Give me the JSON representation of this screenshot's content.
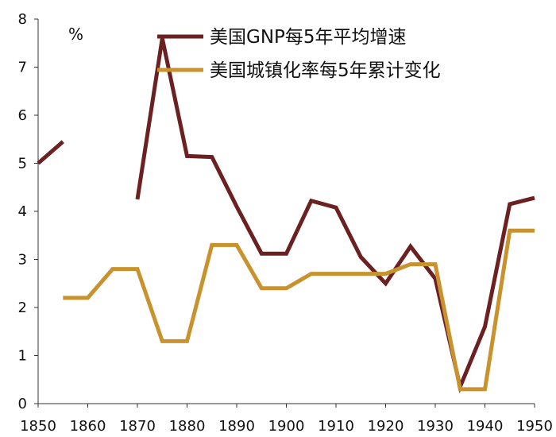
{
  "chart_data": {
    "type": "line",
    "unit_label": "%",
    "xlim": [
      1850,
      1950
    ],
    "ylim": [
      0,
      8
    ],
    "x_ticks": [
      1850,
      1860,
      1870,
      1880,
      1890,
      1900,
      1910,
      1920,
      1930,
      1940,
      1950
    ],
    "y_ticks": [
      0,
      1,
      2,
      3,
      4,
      5,
      6,
      7,
      8
    ],
    "legend_position": "top",
    "grid": false,
    "series": [
      {
        "name": "美国GNP每5年平均增速",
        "color": "#6b2121",
        "points": [
          [
            1850,
            5.0
          ],
          [
            1855,
            5.45
          ],
          [
            1860,
            null
          ],
          [
            1865,
            null
          ],
          [
            1870,
            4.25
          ],
          [
            1875,
            7.6
          ],
          [
            1880,
            5.15
          ],
          [
            1885,
            5.13
          ],
          [
            1890,
            4.1
          ],
          [
            1895,
            3.12
          ],
          [
            1900,
            3.12
          ],
          [
            1905,
            4.22
          ],
          [
            1910,
            4.08
          ],
          [
            1915,
            3.05
          ],
          [
            1920,
            2.5
          ],
          [
            1925,
            3.27
          ],
          [
            1930,
            2.6
          ],
          [
            1935,
            0.35
          ],
          [
            1940,
            1.6
          ],
          [
            1945,
            4.15
          ],
          [
            1950,
            4.28
          ]
        ]
      },
      {
        "name": "美国城镇化率每5年累计变化",
        "color": "#c8922e",
        "points": [
          [
            1855,
            2.2
          ],
          [
            1860,
            2.2
          ],
          [
            1865,
            2.8
          ],
          [
            1870,
            2.8
          ],
          [
            1875,
            1.3
          ],
          [
            1880,
            1.3
          ],
          [
            1885,
            3.3
          ],
          [
            1890,
            3.3
          ],
          [
            1895,
            2.4
          ],
          [
            1900,
            2.4
          ],
          [
            1905,
            2.7
          ],
          [
            1910,
            2.7
          ],
          [
            1915,
            2.7
          ],
          [
            1920,
            2.7
          ],
          [
            1925,
            2.9
          ],
          [
            1930,
            2.9
          ],
          [
            1935,
            0.3
          ],
          [
            1940,
            0.3
          ],
          [
            1945,
            3.6
          ],
          [
            1950,
            3.6
          ]
        ]
      }
    ]
  }
}
